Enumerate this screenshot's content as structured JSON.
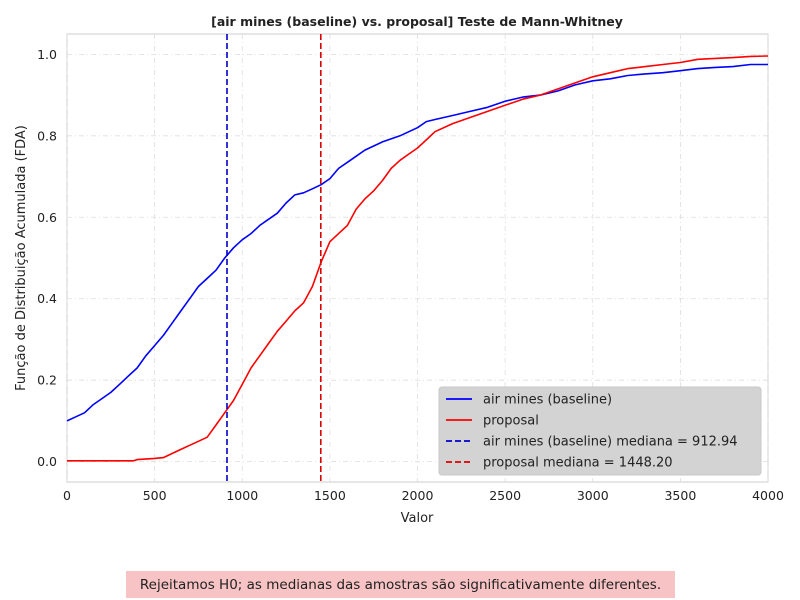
{
  "chart_data": {
    "type": "line",
    "title": "[air mines (baseline) vs. proposal] Teste de Mann-Whitney",
    "xlabel": "Valor",
    "ylabel": "Função de Distribuição Acumulada (FDA)",
    "xlim": [
      0,
      4000
    ],
    "ylim": [
      -0.05,
      1.05
    ],
    "xticks": [
      0,
      500,
      1000,
      1500,
      2000,
      2500,
      3000,
      3500,
      4000
    ],
    "yticks": [
      0.0,
      0.2,
      0.4,
      0.6,
      0.8,
      1.0
    ],
    "grid": true,
    "legend_position": "lower-right",
    "series": [
      {
        "name": "air mines (baseline)",
        "color": "#0000ff",
        "x": [
          0,
          50,
          100,
          150,
          200,
          250,
          300,
          350,
          400,
          450,
          500,
          550,
          600,
          650,
          700,
          750,
          800,
          850,
          900,
          950,
          1000,
          1050,
          1100,
          1150,
          1200,
          1250,
          1300,
          1350,
          1400,
          1450,
          1500,
          1550,
          1600,
          1650,
          1700,
          1750,
          1800,
          1900,
          2000,
          2050,
          2100,
          2200,
          2300,
          2400,
          2500,
          2600,
          2700,
          2800,
          2900,
          3000,
          3100,
          3200,
          3300,
          3400,
          3500,
          3600,
          3700,
          3800,
          3900,
          4000
        ],
        "y": [
          0.1,
          0.11,
          0.12,
          0.14,
          0.155,
          0.17,
          0.19,
          0.21,
          0.23,
          0.26,
          0.285,
          0.31,
          0.34,
          0.37,
          0.4,
          0.43,
          0.45,
          0.47,
          0.5,
          0.525,
          0.545,
          0.56,
          0.58,
          0.595,
          0.61,
          0.635,
          0.655,
          0.66,
          0.67,
          0.68,
          0.695,
          0.72,
          0.735,
          0.75,
          0.765,
          0.775,
          0.785,
          0.8,
          0.82,
          0.835,
          0.84,
          0.85,
          0.86,
          0.87,
          0.885,
          0.895,
          0.9,
          0.91,
          0.925,
          0.935,
          0.94,
          0.948,
          0.952,
          0.955,
          0.96,
          0.965,
          0.968,
          0.97,
          0.975,
          0.975
        ]
      },
      {
        "name": "proposal",
        "color": "#ff0000",
        "x": [
          0,
          100,
          200,
          300,
          380,
          400,
          500,
          550,
          600,
          650,
          700,
          750,
          800,
          850,
          900,
          950,
          1000,
          1050,
          1100,
          1150,
          1200,
          1250,
          1300,
          1350,
          1400,
          1450,
          1500,
          1550,
          1600,
          1650,
          1700,
          1750,
          1800,
          1850,
          1900,
          1950,
          2000,
          2050,
          2100,
          2200,
          2300,
          2400,
          2500,
          2600,
          2700,
          2800,
          2900,
          3000,
          3100,
          3200,
          3300,
          3400,
          3500,
          3600,
          3700,
          3800,
          3900,
          4000
        ],
        "y": [
          0.002,
          0.002,
          0.002,
          0.002,
          0.002,
          0.005,
          0.008,
          0.01,
          0.02,
          0.03,
          0.04,
          0.05,
          0.06,
          0.09,
          0.12,
          0.15,
          0.19,
          0.23,
          0.26,
          0.29,
          0.32,
          0.345,
          0.37,
          0.39,
          0.43,
          0.49,
          0.54,
          0.56,
          0.58,
          0.62,
          0.645,
          0.665,
          0.69,
          0.72,
          0.74,
          0.755,
          0.77,
          0.79,
          0.81,
          0.83,
          0.845,
          0.86,
          0.875,
          0.89,
          0.9,
          0.915,
          0.93,
          0.945,
          0.955,
          0.965,
          0.97,
          0.975,
          0.98,
          0.988,
          0.99,
          0.992,
          0.995,
          0.996
        ]
      }
    ],
    "vlines": [
      {
        "name": "air mines (baseline) mediana = 912.94",
        "x": 912.94,
        "color": "#0000cc",
        "style": "dashed"
      },
      {
        "name": "proposal mediana = 1448.20",
        "x": 1448.2,
        "color": "#dd0000",
        "style": "dashed"
      }
    ]
  },
  "note": "Rejeitamos H0; as medianas das amostras são significativamente diferentes."
}
